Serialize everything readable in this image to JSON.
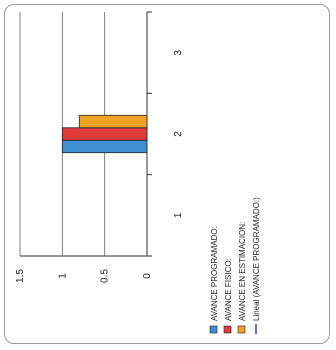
{
  "chart_data": {
    "type": "bar",
    "orientation": "rotated-90-ccw",
    "categories": [
      "1",
      "2",
      "3"
    ],
    "ylim": [
      0,
      1.5
    ],
    "yticks": [
      "0",
      "0.5",
      "1",
      "1.5"
    ],
    "grid": true,
    "legend_position": "bottom",
    "series": [
      {
        "name": "AVANCE PROGRAMADO:",
        "color": "#3f8fd0",
        "values": [
          0,
          1,
          0
        ]
      },
      {
        "name": "AVANCE FISICO:",
        "color": "#e03a3a",
        "values": [
          0,
          1,
          0
        ]
      },
      {
        "name": "AVANCE EN ESTIMACION:",
        "color": "#f0a226",
        "values": [
          0,
          0.8,
          0
        ]
      }
    ],
    "trendline": {
      "name": "Lineal (AVANCE PROGRAMADO:)",
      "color": "#3f3fa0"
    }
  }
}
